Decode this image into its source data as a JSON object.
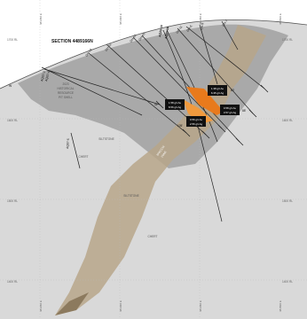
{
  "section_title": "SECTION 4489166N",
  "elevation_labels": [
    "1700 RL",
    "1600 RL",
    "1500 RL",
    "1400 RL"
  ],
  "easting_labels": [
    "481350 E",
    "481400 E",
    "481450 E",
    "481500 E"
  ],
  "holes": [
    "AQ07-3",
    "AQ07-4",
    "GH-13",
    "GH-12",
    "GH-14",
    "GH-15",
    "AQ25-10",
    "AQ25-09",
    "GH-11",
    "OH-6",
    "GH-9",
    "GH-7",
    "AQ07-5"
  ],
  "units": {
    "pit_shell": [
      "2023",
      "HISTORICAL",
      "RESOURCE",
      "PIT SHELL"
    ],
    "siltstone_1": "SILTSTONE",
    "siltstone_2": "SILTSTONE",
    "chert_1": "CHERT",
    "chert_2": "CHERT",
    "breccia": [
      "BRECCIA",
      "ZONE"
    ]
  },
  "intercepts": [
    {
      "lines": [
        "1.38 g/t Au",
        "6.35 g/t Ag"
      ],
      "depth": "80'"
    },
    {
      "lines": [
        "1.58 g/t Au",
        "8.56 g/t Ag"
      ],
      "depth": "41'"
    },
    {
      "lines": [
        "0.56 g/t Au",
        "2.56 g/t Ag"
      ],
      "depth": "105'"
    },
    {
      "lines": [
        "0.58 g/t Au",
        "3.57 g/t Ag"
      ],
      "depth": "88'"
    }
  ],
  "colors": {
    "pit_shell": "#a9a9a9",
    "host_rock": "#d9d9d9",
    "breccia": "#b7a68a",
    "intercept": "#e87a1c",
    "drill": "#222222"
  }
}
